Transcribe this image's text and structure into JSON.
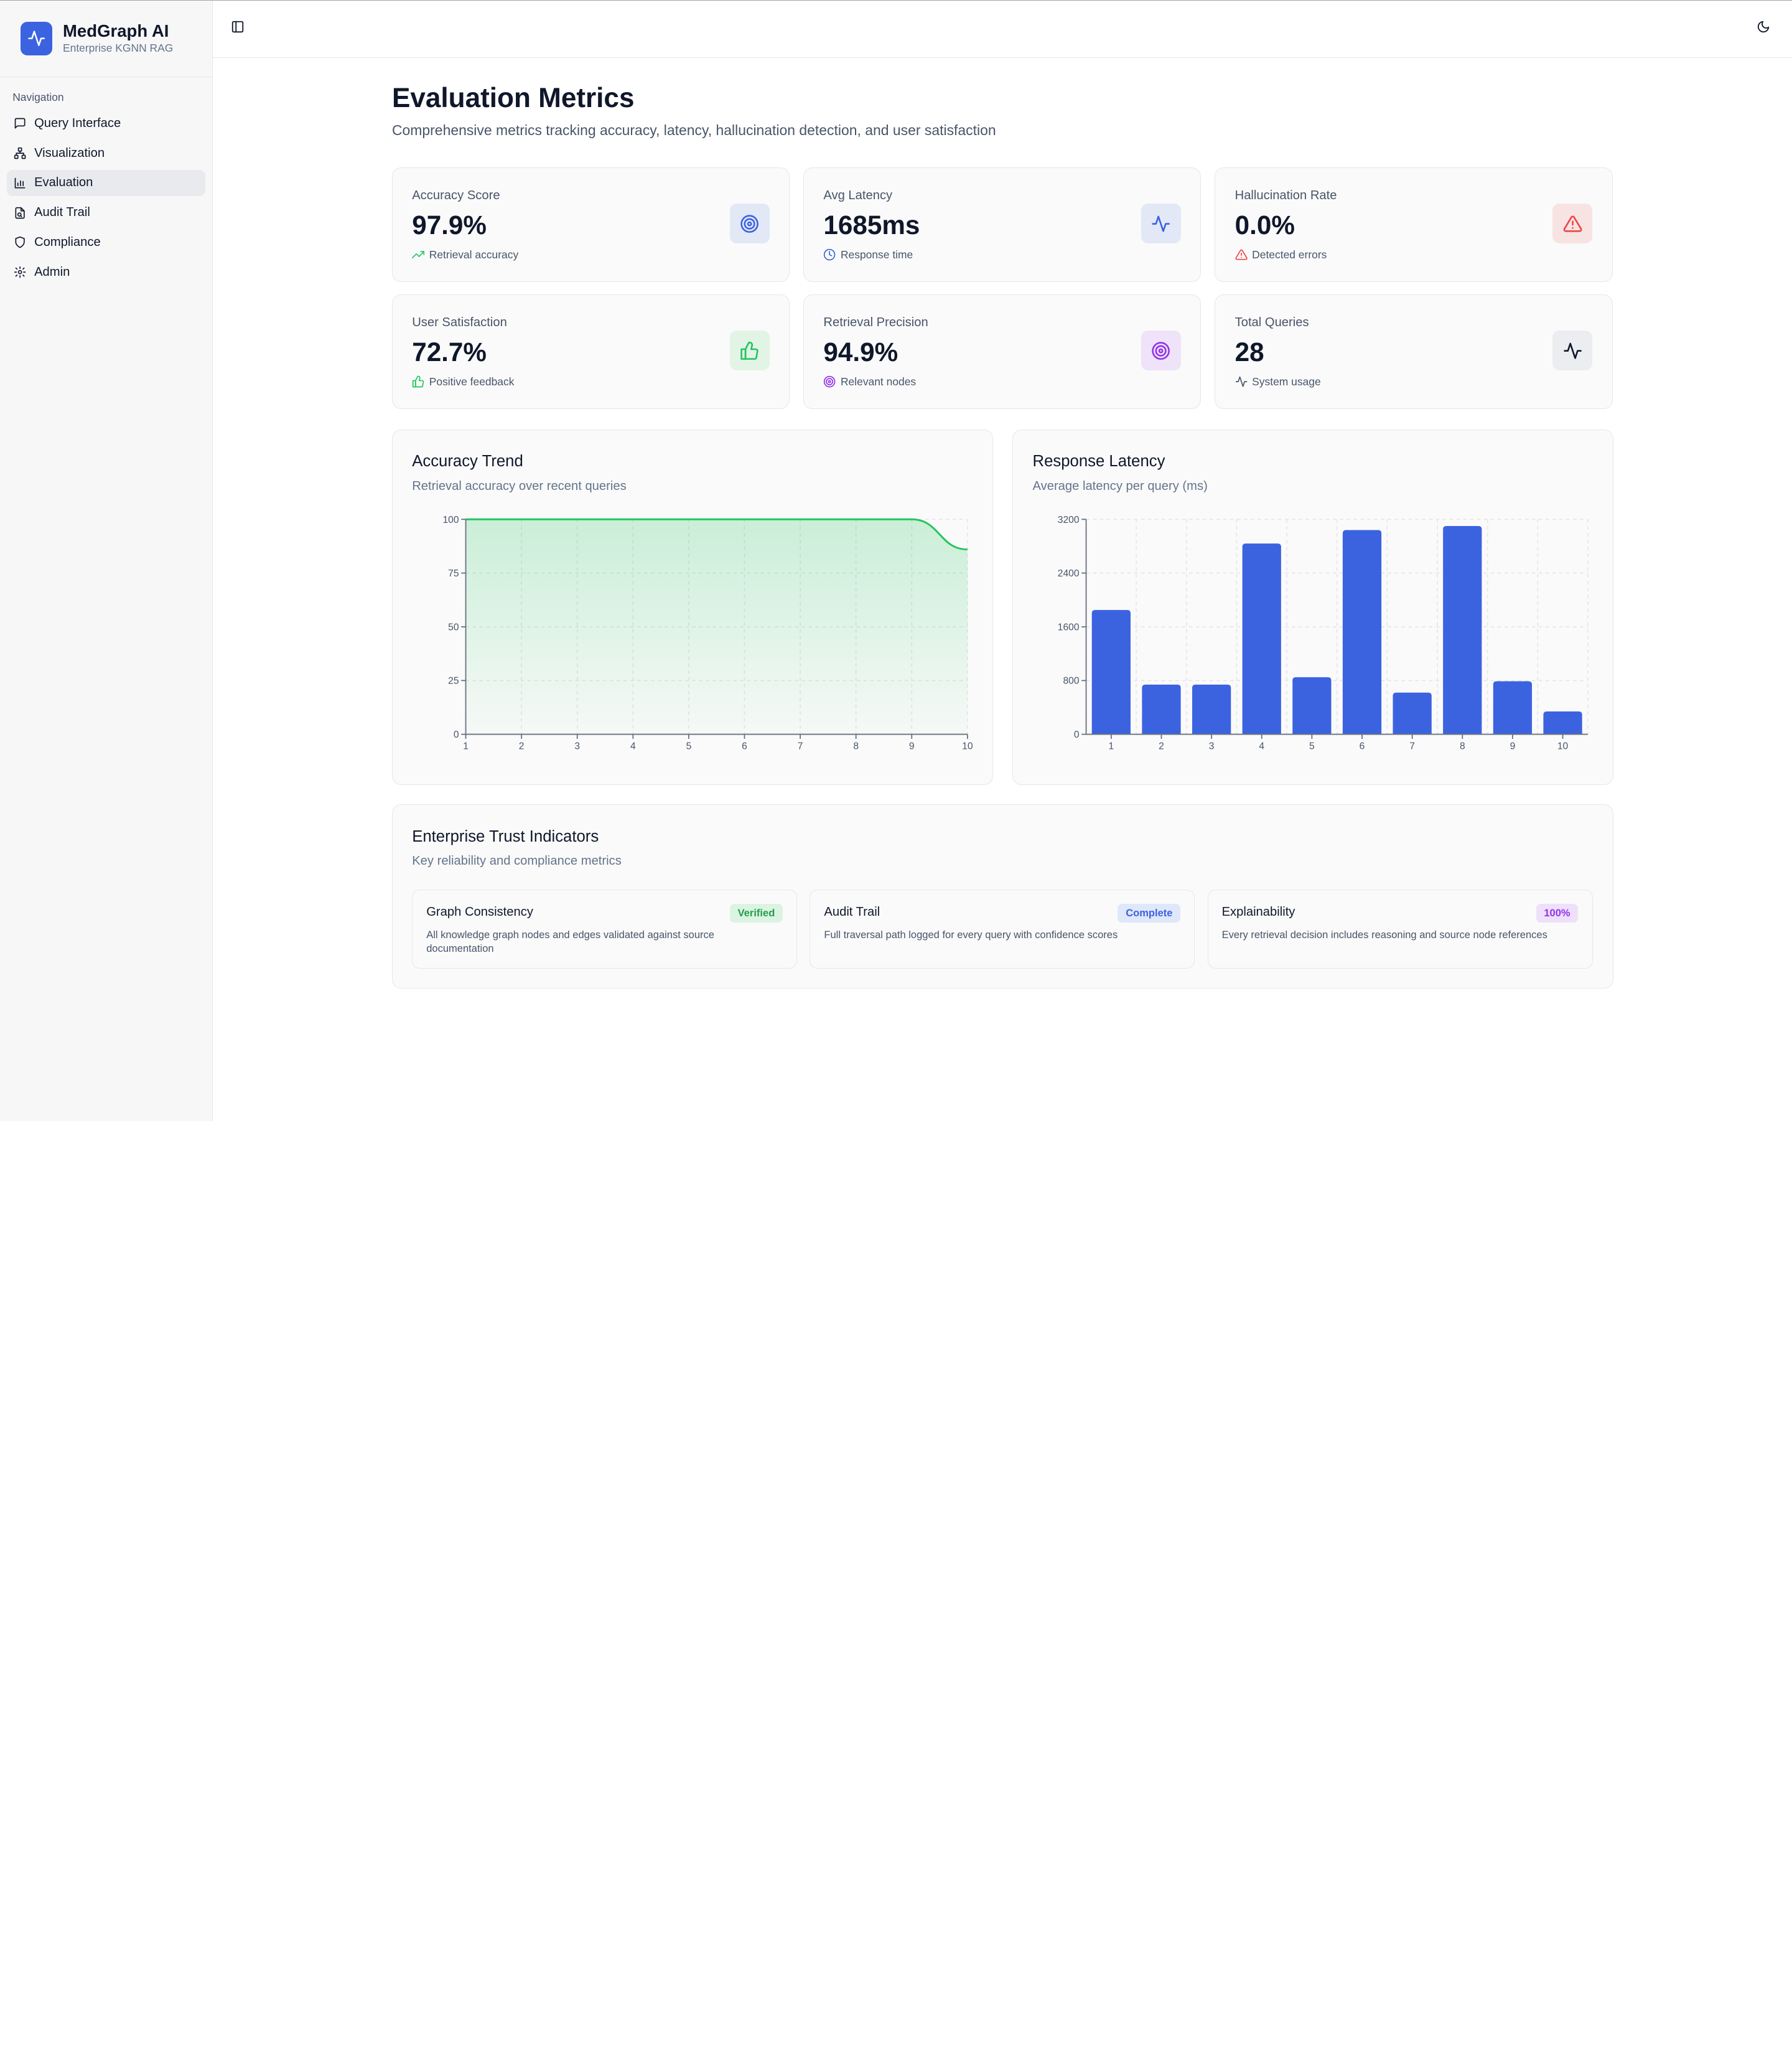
{
  "brand": {
    "name": "MedGraph AI",
    "subtitle": "Enterprise KGNN RAG"
  },
  "sidebar": {
    "section_label": "Navigation",
    "items": [
      {
        "label": "Query Interface",
        "icon": "message-square-icon"
      },
      {
        "label": "Visualization",
        "icon": "network-icon"
      },
      {
        "label": "Evaluation",
        "icon": "bar-chart-icon",
        "active": true
      },
      {
        "label": "Audit Trail",
        "icon": "file-audit-icon"
      },
      {
        "label": "Compliance",
        "icon": "shield-icon"
      },
      {
        "label": "Admin",
        "icon": "gear-icon"
      }
    ]
  },
  "header": {
    "title": "Evaluation Metrics",
    "subtitle": "Comprehensive metrics tracking accuracy, latency, hallucination detection, and user satisfaction"
  },
  "metrics": [
    {
      "label": "Accuracy Score",
      "value": "97.9%",
      "caption": "Retrieval accuracy",
      "icon": "target-icon",
      "caption_icon": "trending-up-icon"
    },
    {
      "label": "Avg Latency",
      "value": "1685ms",
      "caption": "Response time",
      "icon": "activity-icon",
      "caption_icon": "clock-icon"
    },
    {
      "label": "Hallucination Rate",
      "value": "0.0%",
      "caption": "Detected errors",
      "icon": "alert-triangle-icon",
      "caption_icon": "alert-triangle-icon"
    },
    {
      "label": "User Satisfaction",
      "value": "72.7%",
      "caption": "Positive feedback",
      "icon": "thumbs-up-icon",
      "caption_icon": "thumbs-up-icon"
    },
    {
      "label": "Retrieval Precision",
      "value": "94.9%",
      "caption": "Relevant nodes",
      "icon": "target-icon",
      "caption_icon": "target-icon"
    },
    {
      "label": "Total Queries",
      "value": "28",
      "caption": "System usage",
      "icon": "activity-icon",
      "caption_icon": "activity-icon"
    }
  ],
  "colors": {
    "accent": "#3b63e0",
    "green": "#22c55e",
    "red": "#ef4444",
    "purple": "#9333ea"
  },
  "charts": {
    "accuracy": {
      "title": "Accuracy Trend",
      "subtitle": "Retrieval accuracy over recent queries"
    },
    "latency": {
      "title": "Response Latency",
      "subtitle": "Average latency per query (ms)"
    }
  },
  "chart_data": [
    {
      "type": "area",
      "x": [
        1,
        2,
        3,
        4,
        5,
        6,
        7,
        8,
        9,
        10
      ],
      "values": [
        100,
        100,
        100,
        100,
        100,
        100,
        100,
        100,
        100,
        86
      ],
      "ylim": [
        0,
        100
      ],
      "yticks": [
        0,
        25,
        50,
        75,
        100
      ],
      "grid": true
    },
    {
      "type": "bar",
      "categories": [
        "1",
        "2",
        "3",
        "4",
        "5",
        "6",
        "7",
        "8",
        "9",
        "10"
      ],
      "values": [
        1850,
        740,
        740,
        2840,
        850,
        3040,
        620,
        3100,
        790,
        340
      ],
      "ylim": [
        0,
        3200
      ],
      "yticks": [
        0,
        800,
        1600,
        2400,
        3200
      ],
      "grid": true
    }
  ],
  "trust": {
    "title": "Enterprise Trust Indicators",
    "subtitle": "Key reliability and compliance metrics",
    "items": [
      {
        "title": "Graph Consistency",
        "badge": "Verified",
        "desc": "All knowledge graph nodes and edges validated against source documentation"
      },
      {
        "title": "Audit Trail",
        "badge": "Complete",
        "desc": "Full traversal path logged for every query with confidence scores"
      },
      {
        "title": "Explainability",
        "badge": "100%",
        "desc": "Every retrieval decision includes reasoning and source node references"
      }
    ]
  }
}
